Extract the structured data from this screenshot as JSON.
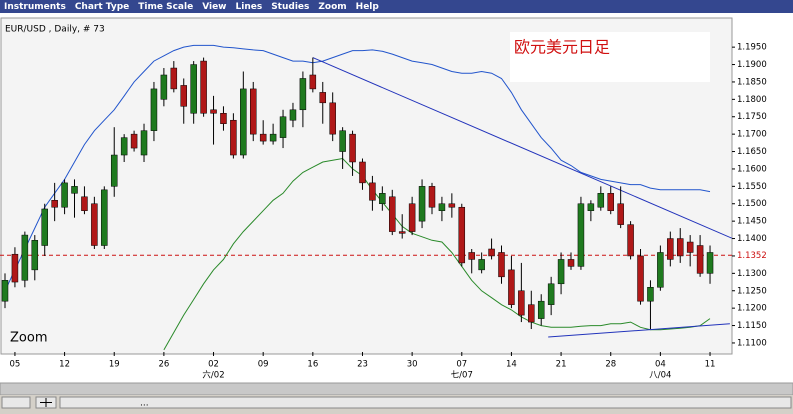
{
  "menu": [
    "Instruments",
    "Chart Type",
    "Time Scale",
    "View",
    "Lines",
    "Studies",
    "Zoom",
    "Help"
  ],
  "status": "...",
  "chart_data": {
    "type": "candlestick",
    "title": "EUR/USD , Daily, # 73",
    "annotation": "欧元美元日足",
    "zoom_label": "Zoom",
    "categories": [
      null,
      "05",
      null,
      null,
      null,
      null,
      "12",
      null,
      null,
      null,
      null,
      "19",
      null,
      null,
      null,
      null,
      "26",
      null,
      null,
      null,
      null,
      "02",
      null,
      null,
      null,
      null,
      "09",
      null,
      null,
      null,
      null,
      "16",
      null,
      null,
      null,
      null,
      "23",
      null,
      null,
      null,
      null,
      "30",
      null,
      null,
      null,
      null,
      "07",
      null,
      null,
      null,
      null,
      "14",
      null,
      null,
      null,
      null,
      "21",
      null,
      null,
      null,
      null,
      "28",
      null,
      null,
      null,
      null,
      "04",
      null,
      null,
      null,
      null,
      "11"
    ],
    "month_labels": [
      null,
      null,
      null,
      null,
      null,
      null,
      null,
      null,
      null,
      null,
      null,
      null,
      null,
      null,
      null,
      null,
      null,
      null,
      null,
      null,
      null,
      "六/02",
      null,
      null,
      null,
      null,
      null,
      null,
      null,
      null,
      null,
      null,
      null,
      null,
      null,
      null,
      null,
      null,
      null,
      null,
      null,
      null,
      null,
      null,
      null,
      null,
      "七/07",
      null,
      null,
      null,
      null,
      null,
      null,
      null,
      null,
      null,
      null,
      null,
      null,
      null,
      null,
      null,
      null,
      null,
      null,
      null,
      "八/04",
      null,
      null,
      null,
      null,
      null
    ],
    "open": [
      1.122,
      1.1355,
      1.128,
      1.131,
      1.138,
      1.151,
      1.149,
      1.153,
      1.152,
      1.15,
      1.138,
      1.155,
      1.164,
      1.17,
      1.164,
      1.171,
      1.18,
      1.189,
      1.184,
      1.176,
      1.191,
      1.177,
      1.176,
      1.174,
      1.164,
      1.183,
      1.17,
      1.168,
      1.169,
      1.174,
      1.177,
      1.187,
      1.182,
      1.179,
      1.165,
      1.17,
      1.162,
      1.156,
      1.15,
      1.152,
      1.142,
      1.15,
      1.145,
      1.155,
      1.148,
      1.15,
      1.149,
      1.136,
      1.131,
      1.137,
      1.136,
      1.131,
      1.125,
      1.121,
      1.117,
      1.121,
      1.127,
      1.134,
      1.132,
      1.148,
      1.149,
      1.153,
      1.15,
      1.144,
      1.135,
      1.122,
      1.126,
      1.14,
      1.14,
      1.139,
      1.138,
      1.13
    ],
    "high": [
      1.13,
      1.1375,
      1.142,
      1.141,
      1.15,
      1.156,
      1.157,
      1.157,
      1.155,
      1.152,
      1.155,
      1.172,
      1.17,
      1.171,
      1.173,
      1.185,
      1.189,
      1.191,
      1.186,
      1.191,
      1.192,
      1.181,
      1.178,
      1.176,
      1.188,
      1.185,
      1.174,
      1.173,
      1.177,
      1.179,
      1.188,
      1.192,
      1.185,
      1.182,
      1.172,
      1.171,
      1.163,
      1.158,
      1.155,
      1.154,
      1.147,
      1.152,
      1.157,
      1.156,
      1.152,
      1.153,
      1.15,
      1.137,
      1.136,
      1.14,
      1.138,
      1.135,
      1.133,
      1.125,
      1.124,
      1.129,
      1.136,
      1.136,
      1.152,
      1.151,
      1.155,
      1.155,
      1.155,
      1.145,
      1.137,
      1.128,
      1.138,
      1.142,
      1.143,
      1.141,
      1.141,
      1.138
    ],
    "low": [
      1.12,
      1.126,
      1.126,
      1.128,
      1.135,
      1.145,
      1.147,
      1.146,
      1.147,
      1.137,
      1.137,
      1.152,
      1.162,
      1.165,
      1.162,
      1.168,
      1.178,
      1.182,
      1.173,
      1.173,
      1.175,
      1.167,
      1.171,
      1.163,
      1.163,
      1.168,
      1.167,
      1.167,
      1.166,
      1.172,
      1.172,
      1.182,
      1.173,
      1.168,
      1.16,
      1.158,
      1.154,
      1.148,
      1.148,
      1.141,
      1.14,
      1.141,
      1.143,
      1.147,
      1.145,
      1.146,
      1.132,
      1.13,
      1.13,
      1.134,
      1.127,
      1.12,
      1.116,
      1.114,
      1.115,
      1.118,
      1.124,
      1.131,
      1.131,
      1.145,
      1.148,
      1.147,
      1.143,
      1.134,
      1.121,
      1.114,
      1.125,
      1.132,
      1.133,
      1.132,
      1.129,
      1.127
    ],
    "close": [
      1.128,
      1.1275,
      1.141,
      1.1395,
      1.1485,
      1.149,
      1.156,
      1.155,
      1.148,
      1.138,
      1.154,
      1.164,
      1.169,
      1.166,
      1.171,
      1.183,
      1.187,
      1.183,
      1.178,
      1.19,
      1.176,
      1.176,
      1.173,
      1.164,
      1.183,
      1.17,
      1.168,
      1.17,
      1.175,
      1.177,
      1.186,
      1.183,
      1.179,
      1.17,
      1.171,
      1.162,
      1.156,
      1.151,
      1.153,
      1.142,
      1.1415,
      1.142,
      1.155,
      1.149,
      1.15,
      1.149,
      1.133,
      1.134,
      1.134,
      1.135,
      1.129,
      1.121,
      1.118,
      1.116,
      1.122,
      1.127,
      1.134,
      1.132,
      1.15,
      1.15,
      1.153,
      1.148,
      1.144,
      1.135,
      1.122,
      1.126,
      1.136,
      1.134,
      1.135,
      1.136,
      1.13,
      1.136
    ],
    "up_color": "#1f7a1f",
    "down_color": "#b01818",
    "bands": [
      {
        "color": "#2255cc",
        "values": [
          1.125,
          1.131,
          1.137,
          1.143,
          1.149,
          1.153,
          1.157,
          1.162,
          1.167,
          1.171,
          1.174,
          1.177,
          1.181,
          1.185,
          1.188,
          1.191,
          1.1925,
          1.194,
          1.195,
          1.1955,
          1.1955,
          1.1955,
          1.195,
          1.1948,
          1.1945,
          1.1942,
          1.194,
          1.193,
          1.192,
          1.191,
          1.191,
          1.1905,
          1.191,
          1.192,
          1.193,
          1.194,
          1.194,
          1.1942,
          1.1938,
          1.193,
          1.192,
          1.191,
          1.1905,
          1.19,
          1.189,
          1.188,
          1.1875,
          1.1875,
          1.188,
          1.1875,
          1.186,
          1.182,
          1.177,
          1.173,
          1.169,
          1.166,
          1.1625,
          1.161,
          1.159,
          1.158,
          1.157,
          1.1565,
          1.156,
          1.1555,
          1.1555,
          1.1545,
          1.154,
          1.154,
          1.154,
          1.154,
          1.154,
          1.1535
        ]
      },
      {
        "color": "#2a8a2a",
        "values": [
          null,
          null,
          null,
          null,
          null,
          null,
          null,
          null,
          null,
          null,
          null,
          null,
          null,
          null,
          null,
          null,
          1.108,
          1.113,
          1.118,
          1.1225,
          1.127,
          1.131,
          1.134,
          1.1385,
          1.142,
          1.145,
          1.148,
          1.151,
          1.153,
          1.1565,
          1.159,
          1.1605,
          1.162,
          1.1625,
          1.163,
          1.16,
          1.158,
          1.154,
          1.1505,
          1.147,
          1.1435,
          1.1415,
          1.1405,
          1.1395,
          1.139,
          1.136,
          1.132,
          1.128,
          1.125,
          1.123,
          1.121,
          1.1195,
          1.1175,
          1.116,
          1.115,
          1.1145,
          1.1145,
          1.1145,
          1.1148,
          1.115,
          1.115,
          1.1155,
          1.1155,
          1.116,
          1.1145,
          1.1138,
          1.1138,
          1.114,
          1.1142,
          1.1145,
          1.115,
          1.117
        ]
      }
    ],
    "trendlines": [
      {
        "color": "#2233bb",
        "x": [
          31,
          73.2
        ],
        "y": [
          1.192,
          1.1401
        ]
      },
      {
        "color": "#2233bb",
        "x": [
          54.7,
          73
        ],
        "y": [
          1.1117,
          1.1155
        ]
      }
    ],
    "hline": {
      "value": 1.1352,
      "label": "1.1352",
      "color": "#cc1111"
    },
    "ylim": [
      1.1074,
      1.2028
    ],
    "yticks": [
      {
        "value": 1.11,
        "label": "1.1100"
      },
      {
        "value": 1.115,
        "label": "1.1150"
      },
      {
        "value": 1.12,
        "label": "1.1200"
      },
      {
        "value": 1.125,
        "label": "1.1250"
      },
      {
        "value": 1.13,
        "label": "1.1300"
      },
      {
        "value": 1.135,
        "label": "1.1350"
      },
      {
        "value": 1.14,
        "label": "1.1400"
      },
      {
        "value": 1.145,
        "label": "1.1450"
      },
      {
        "value": 1.15,
        "label": "1.1500"
      },
      {
        "value": 1.155,
        "label": "1.1550"
      },
      {
        "value": 1.16,
        "label": "1.1600"
      },
      {
        "value": 1.165,
        "label": "1.1650"
      },
      {
        "value": 1.17,
        "label": "1.1700"
      },
      {
        "value": 1.175,
        "label": "1.1750"
      },
      {
        "value": 1.18,
        "label": "1.1800"
      },
      {
        "value": 1.185,
        "label": "1.1850"
      },
      {
        "value": 1.19,
        "label": "1.1900"
      },
      {
        "value": 1.195,
        "label": "1.1950"
      }
    ]
  }
}
